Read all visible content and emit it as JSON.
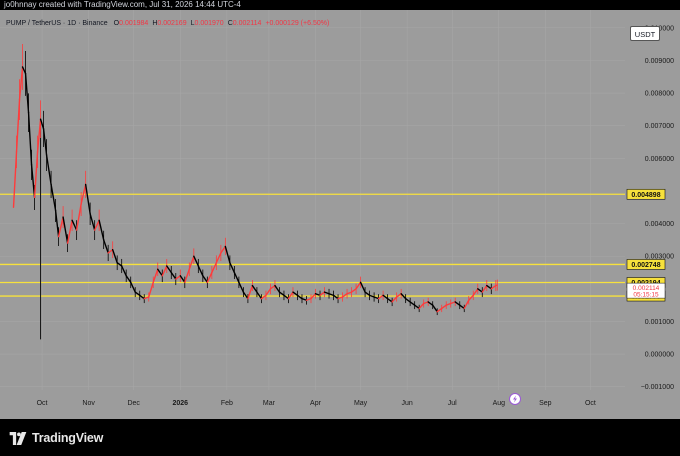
{
  "header": {
    "attribution": "jo0hnnay created with TradingView.com, Jul 31, 2026 14:44 UTC-4"
  },
  "legend": {
    "symbol": "PUMP / TetherUS · 1D · Binance",
    "open_label": "O",
    "open": "0.001984",
    "high_label": "H",
    "high": "0.002169",
    "low_label": "L",
    "low": "0.001970",
    "close_label": "C",
    "close": "0.002114",
    "change": "+0.000129 (+6.50%)"
  },
  "currency_button": "USDT",
  "brand": "TradingView",
  "colors": {
    "background": "#9c9c9c",
    "price_line": "#000000",
    "up_candle": "#ff3b3b",
    "level_line": "#f7e13c",
    "level_label_bg": "#f7e13c"
  },
  "icons": {
    "replay": "lightning-icon",
    "brand": "tradingview-logo-icon"
  },
  "chart_data": {
    "type": "line",
    "title": "PUMP / TetherUS · 1D · Binance",
    "xlabel": "",
    "ylabel": "",
    "x_ticks": [
      {
        "label": "Oct",
        "date": "2025-10-01"
      },
      {
        "label": "Nov",
        "date": "2025-11-01"
      },
      {
        "label": "Dec",
        "date": "2025-12-01"
      },
      {
        "label": "2026",
        "date": "2026-01-01"
      },
      {
        "label": "Feb",
        "date": "2026-02-01"
      },
      {
        "label": "Mar",
        "date": "2026-03-01"
      },
      {
        "label": "Apr",
        "date": "2026-04-01"
      },
      {
        "label": "May",
        "date": "2026-05-01"
      },
      {
        "label": "Jun",
        "date": "2026-06-01"
      },
      {
        "label": "Jul",
        "date": "2026-07-01"
      },
      {
        "label": "Aug",
        "date": "2026-08-01"
      },
      {
        "label": "Sep",
        "date": "2026-09-01"
      },
      {
        "label": "Oct",
        "date": "2026-10-01"
      }
    ],
    "y_ticks": [
      {
        "label": "0.010000",
        "value": 0.01
      },
      {
        "label": "0.009000",
        "value": 0.009
      },
      {
        "label": "0.008000",
        "value": 0.008
      },
      {
        "label": "0.007000",
        "value": 0.007
      },
      {
        "label": "0.006000",
        "value": 0.006
      },
      {
        "label": "0.004000",
        "value": 0.004
      },
      {
        "label": "0.003000",
        "value": 0.003
      },
      {
        "label": "0.001000",
        "value": 0.001
      },
      {
        "label": "0.000000",
        "value": 0.0
      },
      {
        "label": "−0.001000",
        "value": -0.001
      }
    ],
    "ylim": [
      -0.0011,
      0.0103
    ],
    "xlim": [
      "2025-09-03",
      "2026-10-24"
    ],
    "levels": [
      {
        "label": "0.004898",
        "value": 0.004898
      },
      {
        "label": "0.002748",
        "value": 0.002748
      },
      {
        "label": "0.002194",
        "value": 0.002194
      },
      {
        "label": "0.001779",
        "value": 0.001779
      }
    ],
    "current_price": {
      "label": "0.002114",
      "value": 0.002114,
      "countdown": "05:15:15"
    },
    "wick_low": {
      "date": "2025-09-30",
      "value": 0.00045
    },
    "series": [
      {
        "x": [
          "2025-09-12",
          "2025-09-14",
          "2025-09-16",
          "2025-09-18",
          "2025-09-20",
          "2025-09-22",
          "2025-09-24",
          "2025-09-26",
          "2025-09-28",
          "2025-09-30",
          "2025-10-02",
          "2025-10-04",
          "2025-10-07",
          "2025-10-10",
          "2025-10-12",
          "2025-10-15",
          "2025-10-18",
          "2025-10-21",
          "2025-10-24",
          "2025-10-27",
          "2025-10-30",
          "2025-11-02",
          "2025-11-05",
          "2025-11-08",
          "2025-11-11",
          "2025-11-14",
          "2025-11-17",
          "2025-11-20",
          "2025-11-23",
          "2025-11-26",
          "2025-11-29",
          "2025-12-02",
          "2025-12-05",
          "2025-12-08",
          "2025-12-11",
          "2025-12-14",
          "2025-12-17",
          "2025-12-20",
          "2025-12-23",
          "2025-12-26",
          "2025-12-29",
          "2026-01-01",
          "2026-01-04",
          "2026-01-07",
          "2026-01-10",
          "2026-01-13",
          "2026-01-16",
          "2026-01-19",
          "2026-01-22",
          "2026-01-25",
          "2026-01-28",
          "2026-01-31",
          "2026-02-03",
          "2026-02-06",
          "2026-02-09",
          "2026-02-12",
          "2026-02-15",
          "2026-02-18",
          "2026-02-21",
          "2026-02-24",
          "2026-02-27",
          "2026-03-02",
          "2026-03-05",
          "2026-03-08",
          "2026-03-11",
          "2026-03-14",
          "2026-03-17",
          "2026-03-20",
          "2026-03-23",
          "2026-03-26",
          "2026-03-29",
          "2026-04-01",
          "2026-04-04",
          "2026-04-07",
          "2026-04-10",
          "2026-04-13",
          "2026-04-16",
          "2026-04-19",
          "2026-04-22",
          "2026-04-25",
          "2026-04-28",
          "2026-05-01",
          "2026-05-04",
          "2026-05-07",
          "2026-05-10",
          "2026-05-13",
          "2026-05-16",
          "2026-05-19",
          "2026-05-22",
          "2026-05-25",
          "2026-05-28",
          "2026-05-31",
          "2026-06-03",
          "2026-06-06",
          "2026-06-09",
          "2026-06-12",
          "2026-06-15",
          "2026-06-18",
          "2026-06-21",
          "2026-06-24",
          "2026-06-27",
          "2026-06-30",
          "2026-07-03",
          "2026-07-06",
          "2026-07-09",
          "2026-07-12",
          "2026-07-15",
          "2026-07-18",
          "2026-07-21",
          "2026-07-24",
          "2026-07-27",
          "2026-07-30",
          "2026-07-31"
        ],
        "values": [
          0.0045,
          0.0062,
          0.0078,
          0.0088,
          0.0086,
          0.0074,
          0.0058,
          0.0048,
          0.0062,
          0.0072,
          0.0069,
          0.0061,
          0.0052,
          0.0044,
          0.0036,
          0.0042,
          0.0034,
          0.0041,
          0.0038,
          0.0046,
          0.0052,
          0.0043,
          0.0038,
          0.0041,
          0.0035,
          0.0031,
          0.0032,
          0.0028,
          0.0027,
          0.0024,
          0.0022,
          0.0019,
          0.0018,
          0.0017,
          0.00175,
          0.0022,
          0.0026,
          0.0024,
          0.0027,
          0.0025,
          0.0023,
          0.0024,
          0.0022,
          0.0026,
          0.003,
          0.0027,
          0.0024,
          0.0022,
          0.0025,
          0.0028,
          0.0031,
          0.0033,
          0.0028,
          0.0025,
          0.0022,
          0.0019,
          0.0017,
          0.0021,
          0.0019,
          0.0017,
          0.0018,
          0.002,
          0.0021,
          0.0019,
          0.0018,
          0.0017,
          0.0019,
          0.0018,
          0.0017,
          0.00165,
          0.0017,
          0.00185,
          0.0018,
          0.0019,
          0.00185,
          0.0018,
          0.0017,
          0.00175,
          0.00185,
          0.0019,
          0.002,
          0.0022,
          0.0019,
          0.0018,
          0.00175,
          0.0017,
          0.0018,
          0.0017,
          0.0016,
          0.00175,
          0.00185,
          0.0017,
          0.0016,
          0.0015,
          0.0014,
          0.00155,
          0.0016,
          0.0015,
          0.0013,
          0.0014,
          0.0015,
          0.00155,
          0.0016,
          0.0015,
          0.0014,
          0.00165,
          0.0018,
          0.002,
          0.0019,
          0.0021,
          0.002,
          0.0021,
          0.002114
        ]
      }
    ]
  }
}
